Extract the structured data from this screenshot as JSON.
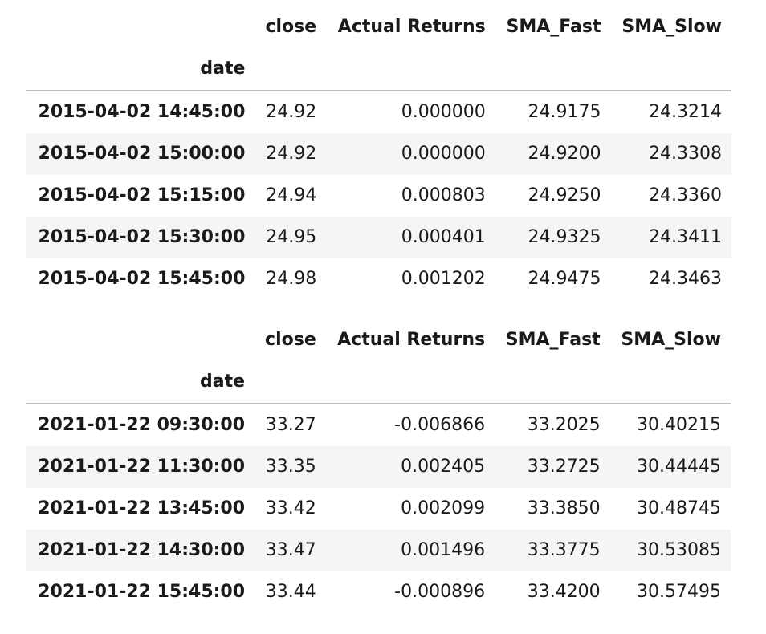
{
  "tables": [
    {
      "columns": [
        "close",
        "Actual Returns",
        "SMA_Fast",
        "SMA_Slow"
      ],
      "index_name": "date",
      "rows": [
        {
          "date": "2015-04-02 14:45:00",
          "values": [
            "24.92",
            "0.000000",
            "24.9175",
            "24.3214"
          ]
        },
        {
          "date": "2015-04-02 15:00:00",
          "values": [
            "24.92",
            "0.000000",
            "24.9200",
            "24.3308"
          ]
        },
        {
          "date": "2015-04-02 15:15:00",
          "values": [
            "24.94",
            "0.000803",
            "24.9250",
            "24.3360"
          ]
        },
        {
          "date": "2015-04-02 15:30:00",
          "values": [
            "24.95",
            "0.000401",
            "24.9325",
            "24.3411"
          ]
        },
        {
          "date": "2015-04-02 15:45:00",
          "values": [
            "24.98",
            "0.001202",
            "24.9475",
            "24.3463"
          ]
        }
      ]
    },
    {
      "columns": [
        "close",
        "Actual Returns",
        "SMA_Fast",
        "SMA_Slow"
      ],
      "index_name": "date",
      "rows": [
        {
          "date": "2021-01-22 09:30:00",
          "values": [
            "33.27",
            "-0.006866",
            "33.2025",
            "30.40215"
          ]
        },
        {
          "date": "2021-01-22 11:30:00",
          "values": [
            "33.35",
            "0.002405",
            "33.2725",
            "30.44445"
          ]
        },
        {
          "date": "2021-01-22 13:45:00",
          "values": [
            "33.42",
            "0.002099",
            "33.3850",
            "30.48745"
          ]
        },
        {
          "date": "2021-01-22 14:30:00",
          "values": [
            "33.47",
            "0.001496",
            "33.3775",
            "30.53085"
          ]
        },
        {
          "date": "2021-01-22 15:45:00",
          "values": [
            "33.44",
            "-0.000896",
            "33.4200",
            "30.57495"
          ]
        }
      ]
    }
  ]
}
